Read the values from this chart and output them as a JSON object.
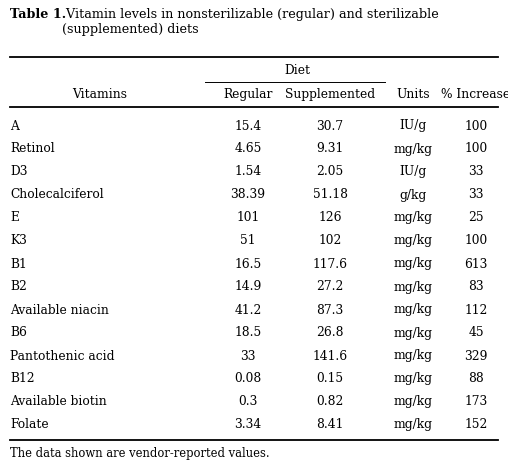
{
  "title_bold": "Table 1.",
  "title_rest": " Vitamin levels in nonsterilizable (regular) and sterilizable\n(supplemented) diets",
  "group_header": "Diet",
  "col_headers": [
    "Vitamins",
    "Regular",
    "Supplemented",
    "Units",
    "% Increase"
  ],
  "rows": [
    [
      "A",
      "15.4",
      "30.7",
      "IU/g",
      "100"
    ],
    [
      "Retinol",
      "4.65",
      "9.31",
      "mg/kg",
      "100"
    ],
    [
      "D3",
      "1.54",
      "2.05",
      "IU/g",
      "33"
    ],
    [
      "Cholecalciferol",
      "38.39",
      "51.18",
      "g/kg",
      "33"
    ],
    [
      "E",
      "101",
      "126",
      "mg/kg",
      "25"
    ],
    [
      "K3",
      "51",
      "102",
      "mg/kg",
      "100"
    ],
    [
      "B1",
      "16.5",
      "117.6",
      "mg/kg",
      "613"
    ],
    [
      "B2",
      "14.9",
      "27.2",
      "mg/kg",
      "83"
    ],
    [
      "Available niacin",
      "41.2",
      "87.3",
      "mg/kg",
      "112"
    ],
    [
      "B6",
      "18.5",
      "26.8",
      "mg/kg",
      "45"
    ],
    [
      "Pantothenic acid",
      "33",
      "141.6",
      "mg/kg",
      "329"
    ],
    [
      "B12",
      "0.08",
      "0.15",
      "mg/kg",
      "88"
    ],
    [
      "Available biotin",
      "0.3",
      "0.82",
      "mg/kg",
      "173"
    ],
    [
      "Folate",
      "3.34",
      "8.41",
      "mg/kg",
      "152"
    ]
  ],
  "footnote": "The data shown are vendor-reported values.",
  "bg_color": "#ffffff",
  "text_color": "#000000",
  "line_color": "#000000",
  "font_size": 8.8,
  "title_font_size": 9.2
}
